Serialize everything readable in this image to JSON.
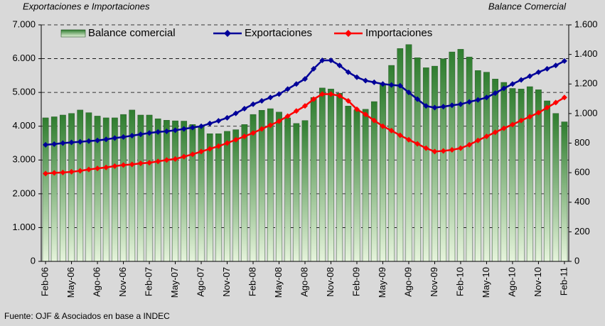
{
  "chart_data": {
    "type": "bar-line",
    "title_left": "Exportaciones e Importaciones",
    "title_right": "Balance Comercial",
    "source": "Fuente: OJF & Asociados en base a INDEC",
    "categories": [
      "Feb-06",
      null,
      null,
      "May-06",
      null,
      null,
      "Ago-06",
      null,
      null,
      "Nov-06",
      null,
      null,
      "Feb-07",
      null,
      null,
      "May-07",
      null,
      null,
      "Ago-07",
      null,
      null,
      "Nov-07",
      null,
      null,
      "Feb-08",
      null,
      null,
      "May-08",
      null,
      null,
      "Ago-08",
      null,
      null,
      "Nov-08",
      null,
      null,
      "Feb-09",
      null,
      null,
      "May-09",
      null,
      null,
      "Ago-09",
      null,
      null,
      "Nov-09",
      null,
      null,
      "Feb-10",
      null,
      null,
      "May-10",
      null,
      null,
      "Ago-10",
      null,
      null,
      "Nov-10",
      null,
      null,
      "Feb-11"
    ],
    "series": [
      {
        "name": "Balance comercial",
        "type": "bar",
        "axis": "y2",
        "color": "#2f7d2f",
        "values": [
          971,
          978,
          990,
          1001,
          1024,
          1006,
          983,
          971,
          971,
          994,
          1024,
          990,
          990,
          965,
          955,
          951,
          949,
          926,
          914,
          864,
          864,
          880,
          891,
          926,
          994,
          1022,
          1033,
          1010,
          971,
          933,
          953,
          1109,
          1173,
          1166,
          1138,
          1051,
          1024,
          1029,
          1081,
          1200,
          1326,
          1440,
          1467,
          1378,
          1310,
          1321,
          1371,
          1417,
          1435,
          1383,
          1291,
          1280,
          1234,
          1211,
          1170,
          1166,
          1182,
          1161,
          1086,
          1001,
          944
        ]
      },
      {
        "name": "Exportaciones",
        "type": "line",
        "color": "#000099",
        "values": [
          3450,
          3470,
          3500,
          3520,
          3540,
          3560,
          3580,
          3610,
          3650,
          3680,
          3720,
          3760,
          3800,
          3830,
          3850,
          3880,
          3920,
          3960,
          4000,
          4080,
          4160,
          4250,
          4380,
          4520,
          4650,
          4750,
          4850,
          4950,
          5100,
          5250,
          5400,
          5700,
          5950,
          5950,
          5800,
          5600,
          5450,
          5350,
          5300,
          5250,
          5220,
          5200,
          5000,
          4800,
          4600,
          4550,
          4580,
          4620,
          4650,
          4720,
          4780,
          4850,
          4980,
          5120,
          5250,
          5370,
          5480,
          5600,
          5700,
          5800,
          5930
        ]
      },
      {
        "name": "Importaciones",
        "type": "line",
        "color": "#ff0000",
        "values": [
          2600,
          2620,
          2630,
          2650,
          2680,
          2720,
          2750,
          2780,
          2820,
          2850,
          2870,
          2900,
          2920,
          2960,
          3000,
          3030,
          3100,
          3170,
          3250,
          3330,
          3410,
          3500,
          3600,
          3700,
          3800,
          3920,
          4030,
          4150,
          4300,
          4450,
          4600,
          4800,
          4950,
          4950,
          4900,
          4750,
          4500,
          4350,
          4170,
          4000,
          3870,
          3730,
          3600,
          3480,
          3350,
          3250,
          3270,
          3300,
          3350,
          3450,
          3580,
          3700,
          3820,
          3940,
          4050,
          4170,
          4280,
          4400,
          4550,
          4700,
          4850
        ]
      }
    ],
    "ylim": [
      0,
      7000
    ],
    "yticks": [
      0,
      {
        "value": 1000,
        "label": "1.000"
      },
      {
        "value": 2000,
        "label": "2.000"
      },
      {
        "value": 3000,
        "label": "3.000"
      },
      {
        "value": 4000,
        "label": "4.000"
      },
      {
        "value": 5000,
        "label": "5.000"
      },
      {
        "value": 6000,
        "label": "6.000"
      },
      {
        "value": 7000,
        "label": "7.000"
      }
    ],
    "y2lim": [
      0,
      1600
    ],
    "y2ticks": [
      0,
      200,
      400,
      600,
      800,
      {
        "value": 1000,
        "label": "1.000"
      },
      {
        "value": 1200,
        "label": "1.200"
      },
      {
        "value": 1400,
        "label": "1.400"
      },
      {
        "value": 1600,
        "label": "1.600"
      }
    ],
    "grid": true,
    "legend": "top"
  }
}
